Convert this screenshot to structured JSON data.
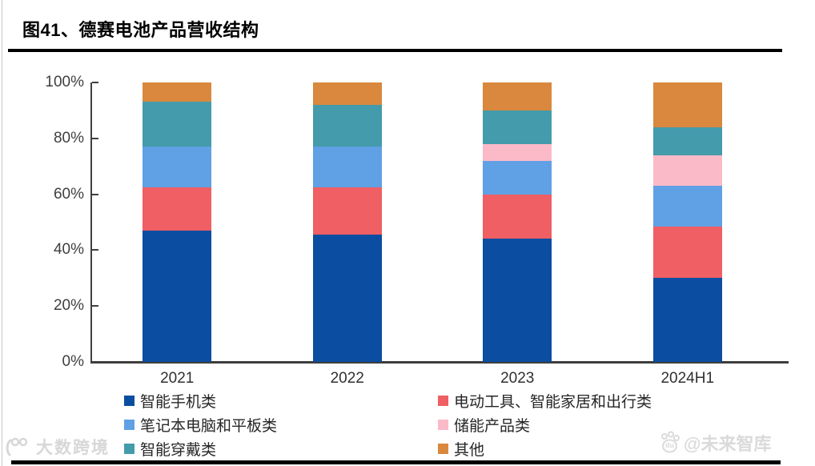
{
  "page": {
    "title": "图41、德赛电池产品营收结构"
  },
  "chart_data": {
    "type": "bar",
    "stacked": true,
    "percent_stacked": true,
    "title": "图41、德赛电池产品营收结构",
    "categories": [
      "2021",
      "2022",
      "2023",
      "2024H1"
    ],
    "series": [
      {
        "name": "智能手机类",
        "color": "#0b4da0",
        "values": [
          47,
          45.5,
          44,
          30
        ]
      },
      {
        "name": "电动工具、智能家居和出行类",
        "color": "#ef5f63",
        "values": [
          15.5,
          17,
          16,
          18.5
        ]
      },
      {
        "name": "笔记本电脑和平板类",
        "color": "#60a0e4",
        "values": [
          14.5,
          14.5,
          12,
          14.5
        ]
      },
      {
        "name": "储能产品类",
        "color": "#fbbac8",
        "values": [
          0,
          0,
          6,
          11
        ]
      },
      {
        "name": "智能穿戴类",
        "color": "#449bab",
        "values": [
          16,
          15,
          12,
          10
        ]
      },
      {
        "name": "其他",
        "color": "#d9883e",
        "values": [
          7,
          8,
          10,
          16
        ]
      }
    ],
    "xlabel": "",
    "ylabel": "",
    "ylim": [
      0,
      100
    ],
    "y_tick_step": 20,
    "y_tick_labels": [
      "0%",
      "20%",
      "40%",
      "60%",
      "80%",
      "100%"
    ],
    "grid": false,
    "legend_position": "bottom"
  },
  "colors": {
    "axis": "#404040",
    "title_rule": "#000000"
  },
  "watermarks": {
    "bottom_left": "大数跨境",
    "bottom_right": "@未来智库",
    "paw_label": "du"
  }
}
